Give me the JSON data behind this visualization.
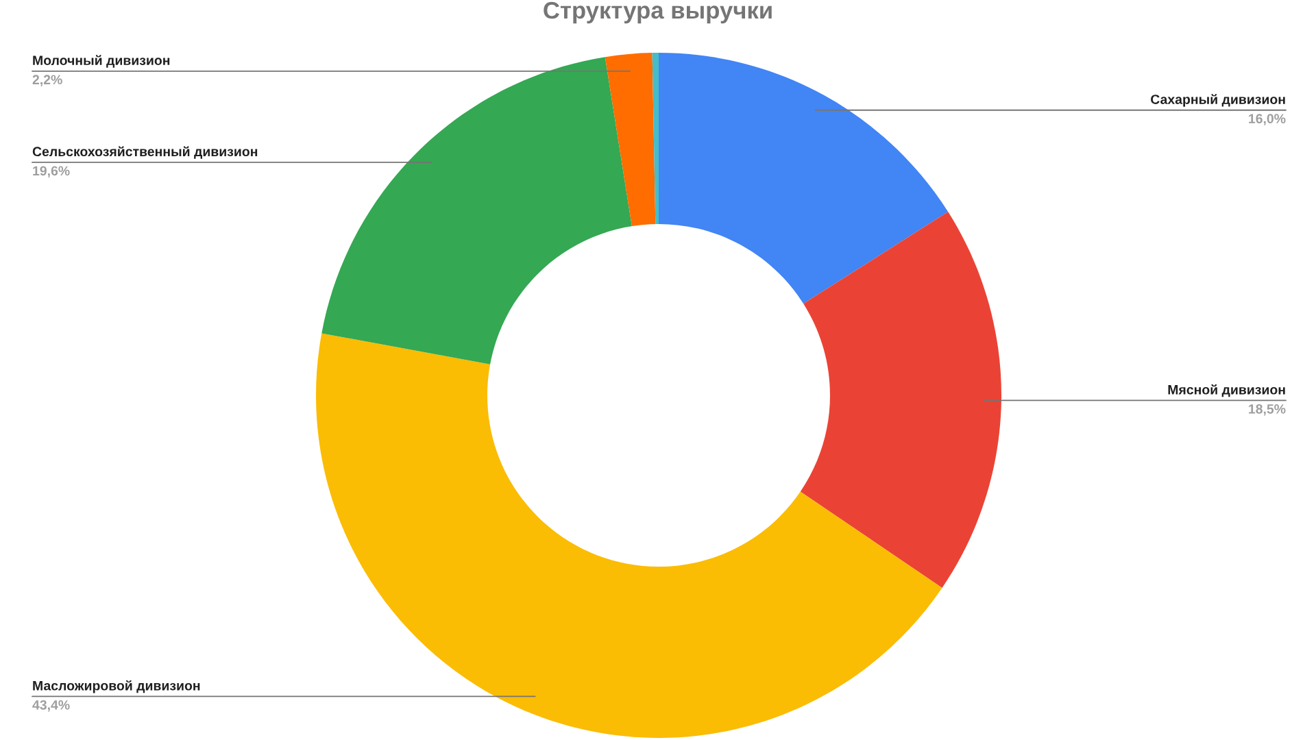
{
  "chart_data": {
    "type": "donut",
    "title": "Структура выручки",
    "categories": [
      "Сахарный дивизион",
      "Мясной дивизион",
      "Масложировой дивизион",
      "Сельскохозяйственный дивизион",
      "Молочный дивизион",
      null
    ],
    "values": [
      16.0,
      18.5,
      43.4,
      19.6,
      2.2,
      0.3
    ],
    "colors": [
      "#4285f4",
      "#ea4335",
      "#fbbc04",
      "#34a853",
      "#ff6d01",
      "#46bdc6"
    ],
    "value_labels": [
      "16,0%",
      "18,5%",
      "43,4%",
      "19,6%",
      "2,2%",
      null
    ]
  }
}
